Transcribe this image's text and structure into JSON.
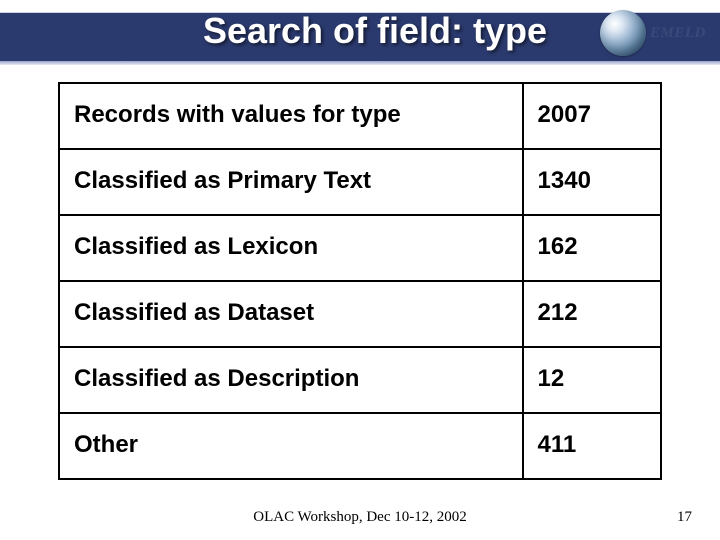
{
  "header": {
    "title": "Search of field:  type",
    "band_color": "#2b3a6e",
    "title_color": "#ffffff",
    "title_fontsize": 36
  },
  "logo": {
    "text": "EMELD",
    "text_color": "#394a7a"
  },
  "table": {
    "type": "table",
    "border_color": "#000000",
    "cell_fontsize": 24,
    "cell_color": "#000000",
    "column_widths_pct": [
      77,
      23
    ],
    "rows": [
      {
        "label": "Records with values for type",
        "value": "2007"
      },
      {
        "label": "Classified as Primary Text",
        "value": "1340"
      },
      {
        "label": "Classified as Lexicon",
        "value": "162"
      },
      {
        "label": "Classified as Dataset",
        "value": "212"
      },
      {
        "label": "Classified as Description",
        "value": "12"
      },
      {
        "label": "Other",
        "value": "411"
      }
    ]
  },
  "footer": {
    "center": "OLAC Workshop, Dec 10-12, 2002",
    "page_number": "17"
  },
  "background_color": "#ffffff"
}
